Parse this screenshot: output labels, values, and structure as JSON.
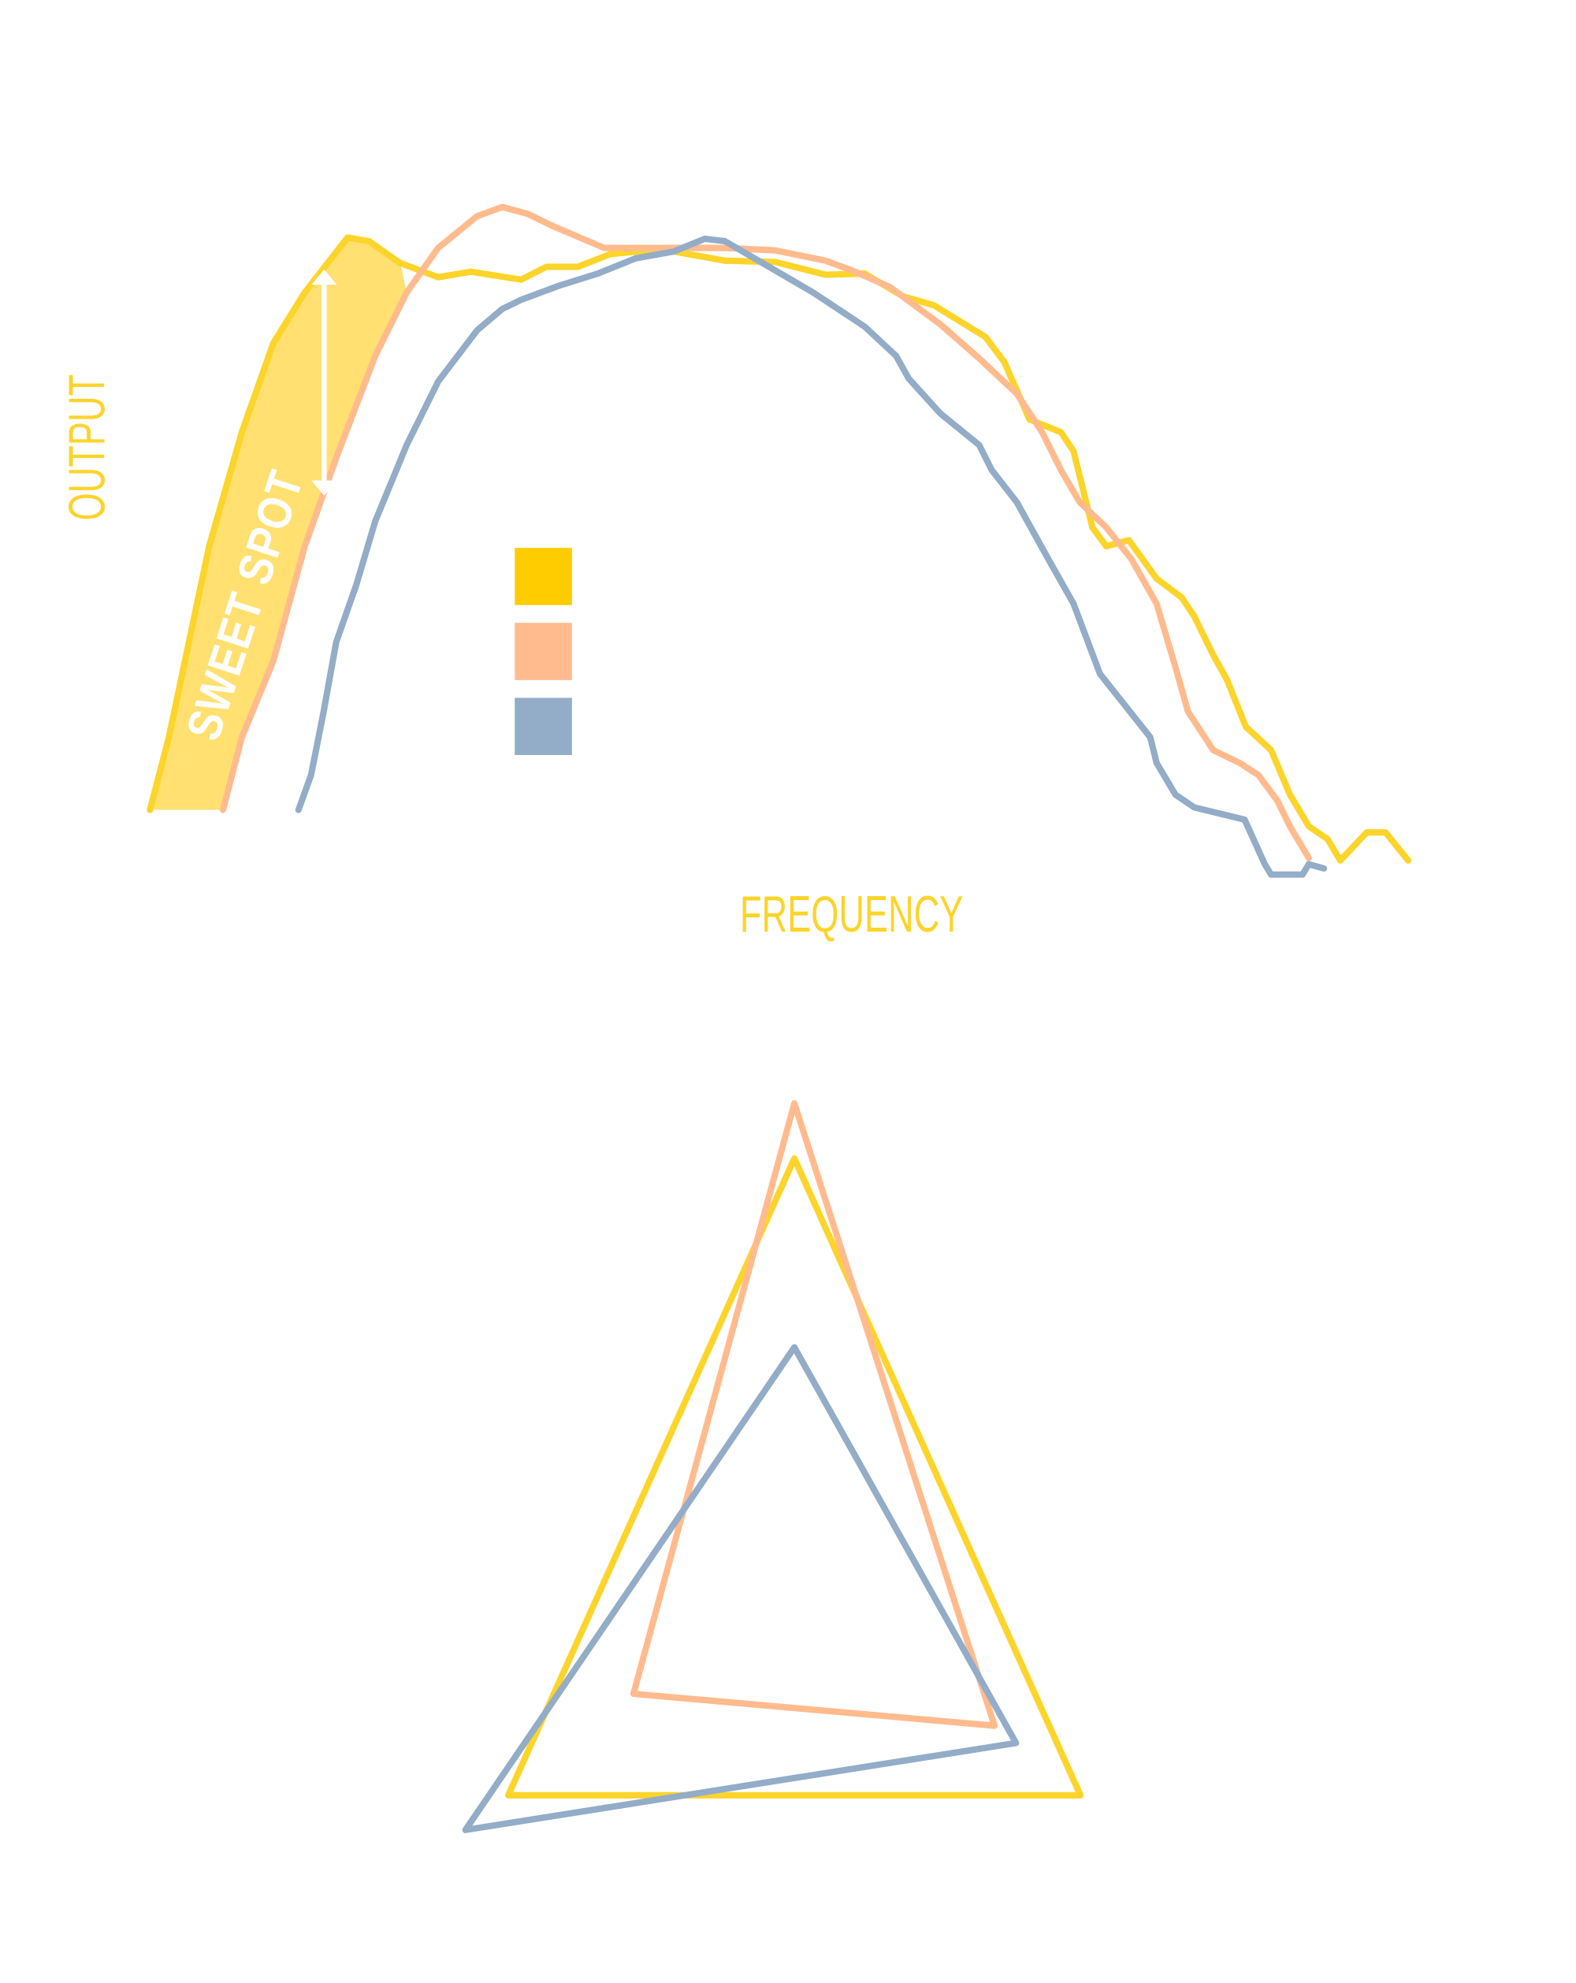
{
  "chart_data": [
    {
      "type": "line",
      "title": "",
      "xlabel": "FREQUENCY",
      "ylabel": "OUTPUT",
      "xlim": [
        0,
        100
      ],
      "ylim": [
        -10,
        100
      ],
      "grid": false,
      "legend": {
        "placement": "center-left",
        "entries": [
          "",
          "",
          ""
        ]
      },
      "annotation": "SWEET SPOT",
      "series": [
        {
          "name": "yellow",
          "color": "#FCD42A",
          "x": [
            0,
            1.5,
            4.7,
            7.3,
            9.8,
            12.3,
            15.7,
            17.4,
            19.9,
            22.9,
            25.5,
            29.5,
            31.5,
            34.0,
            36.6,
            40.6,
            45.7,
            49.7,
            53.7,
            56.8,
            59.8,
            62.3,
            66.4,
            67.9,
            69.9,
            72.4,
            73.4,
            74.9,
            76.0,
            77.8,
            80.0,
            82.0,
            83.0,
            84.5,
            85.6,
            87.1,
            89.1,
            90.6,
            92.1,
            93.6,
            94.6,
            96.7,
            98.2,
            100
          ],
          "y": [
            0.6,
            12.5,
            43.8,
            62.5,
            77.1,
            85.4,
            94.4,
            93.8,
            90.2,
            87.9,
            88.8,
            87.5,
            89.6,
            89.6,
            91.7,
            92.5,
            90.6,
            90.4,
            88.3,
            88.5,
            84.8,
            83.3,
            78.1,
            74.0,
            64.6,
            62.5,
            59.4,
            46.9,
            43.8,
            44.8,
            38.5,
            35.4,
            32.3,
            26.0,
            21.9,
            14.2,
            10.4,
            3.1,
            -2.1,
            -4.2,
            -7.7,
            -3.1,
            -3.1,
            -7.7
          ]
        },
        {
          "name": "peach",
          "color": "#FFBB8E",
          "x": [
            5.8,
            7.3,
            9.8,
            12.3,
            14.8,
            17.9,
            20.4,
            22.9,
            26.0,
            28.0,
            30.0,
            32.0,
            36.1,
            40.6,
            45.7,
            49.7,
            53.7,
            55.8,
            58.8,
            62.8,
            65.9,
            68.9,
            70.9,
            72.4,
            73.9,
            76.0,
            78.0,
            80.0,
            81.5,
            82.5,
            84.5,
            86.6,
            88.1,
            89.6,
            90.6,
            92.1
          ],
          "y": [
            0.6,
            12.5,
            25.0,
            43.8,
            58.3,
            75.0,
            85.4,
            92.7,
            97.9,
            99.4,
            98.3,
            96.3,
            92.7,
            92.7,
            92.7,
            92.3,
            90.6,
            89.0,
            86.3,
            80.2,
            74.6,
            68.8,
            62.5,
            56.3,
            51.0,
            46.9,
            41.7,
            34.4,
            24.0,
            16.7,
            10.4,
            8.3,
            6.3,
            2.1,
            -2.1,
            -7.3
          ]
        },
        {
          "name": "blue",
          "color": "#93ACC7",
          "x": [
            11.8,
            12.8,
            13.8,
            14.8,
            16.4,
            17.9,
            20.4,
            22.9,
            26.0,
            28.0,
            29.5,
            32.5,
            35.6,
            38.6,
            41.6,
            44.1,
            45.7,
            48.7,
            52.7,
            56.8,
            59.3,
            60.3,
            62.8,
            65.9,
            66.9,
            68.9,
            71.4,
            73.4,
            75.5,
            77.5,
            79.5,
            80.0,
            81.5,
            83.0,
            85.0,
            87.0,
            88.6,
            89.1,
            91.6,
            92.1,
            93.3
          ],
          "y": [
            0.6,
            6.3,
            16.7,
            28.1,
            37.5,
            47.9,
            60.4,
            70.8,
            79.2,
            82.7,
            84.2,
            86.5,
            88.5,
            91.0,
            92.1,
            94.2,
            93.8,
            90.2,
            85.4,
            79.8,
            75.0,
            71.3,
            65.6,
            60.4,
            56.3,
            51.0,
            41.7,
            34.4,
            22.9,
            17.7,
            12.5,
            8.3,
            3.1,
            1.0,
            0,
            -1.0,
            -8.3,
            -10,
            -10,
            -8.3,
            -9.0
          ]
        }
      ],
      "sweet_spot_range_x": [
        0,
        21.4
      ]
    },
    {
      "type": "radar",
      "axes": [
        "",
        "",
        ""
      ],
      "range": [
        0,
        100
      ],
      "series": [
        {
          "name": "yellow",
          "color": "#FCD42A",
          "values": [
            88,
            80,
            80
          ]
        },
        {
          "name": "peach",
          "color": "#FFBB8E",
          "values": [
            100,
            56,
            45
          ]
        },
        {
          "name": "blue",
          "color": "#93ACC7",
          "values": [
            47,
            62,
            92
          ]
        }
      ]
    }
  ],
  "colors": {
    "yellow": "#FCD42A",
    "peach": "#FFBB8E",
    "blue": "#93ACC7",
    "legend_yellow": "#FFCC00",
    "sweet_fill": "#FFE070"
  }
}
